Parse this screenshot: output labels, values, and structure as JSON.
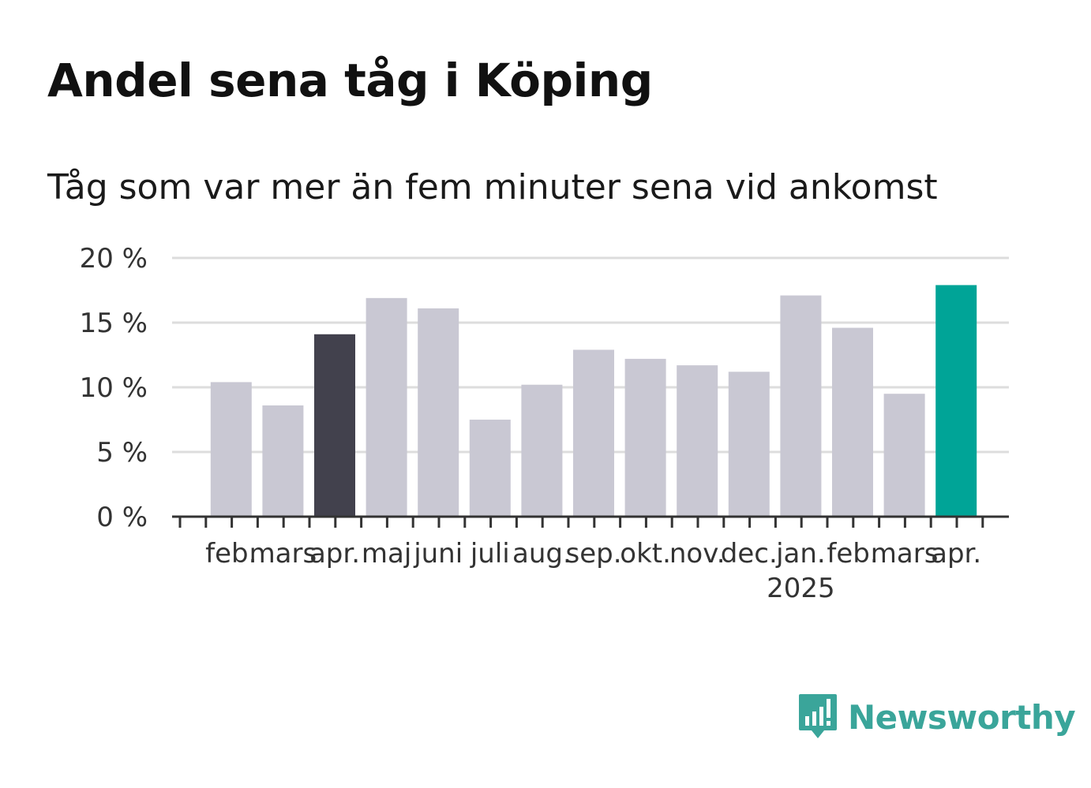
{
  "title": "Andel sena tåg i Köping",
  "subtitle": "Tåg som var mer än fem minuter sena vid ankomst",
  "brand": {
    "name": "Newsworthy",
    "color": "#3aa59a",
    "icon": "newsworthy-logo-icon"
  },
  "chart_data": {
    "type": "bar",
    "categories": [
      "feb.",
      "mars",
      "apr.",
      "maj",
      "juni",
      "juli",
      "aug.",
      "sep.",
      "okt.",
      "nov.",
      "dec.",
      "jan.",
      "feb.",
      "mars",
      "apr."
    ],
    "values": [
      10.4,
      8.6,
      14.1,
      16.9,
      16.1,
      7.5,
      10.2,
      12.9,
      12.2,
      11.7,
      11.2,
      17.1,
      14.6,
      9.5,
      17.9
    ],
    "year_labels": [
      {
        "index": 11,
        "label": "2025"
      }
    ],
    "highlights": {
      "2": "#42414d",
      "14": "#00a497"
    },
    "default_color": "#c9c8d3",
    "yticks": [
      "0 %",
      "5 %",
      "10 %",
      "15 %",
      "20 %"
    ],
    "ylim": [
      0,
      20
    ],
    "grid": true,
    "grid_color": "#dddddd",
    "axis_color": "#333333"
  }
}
